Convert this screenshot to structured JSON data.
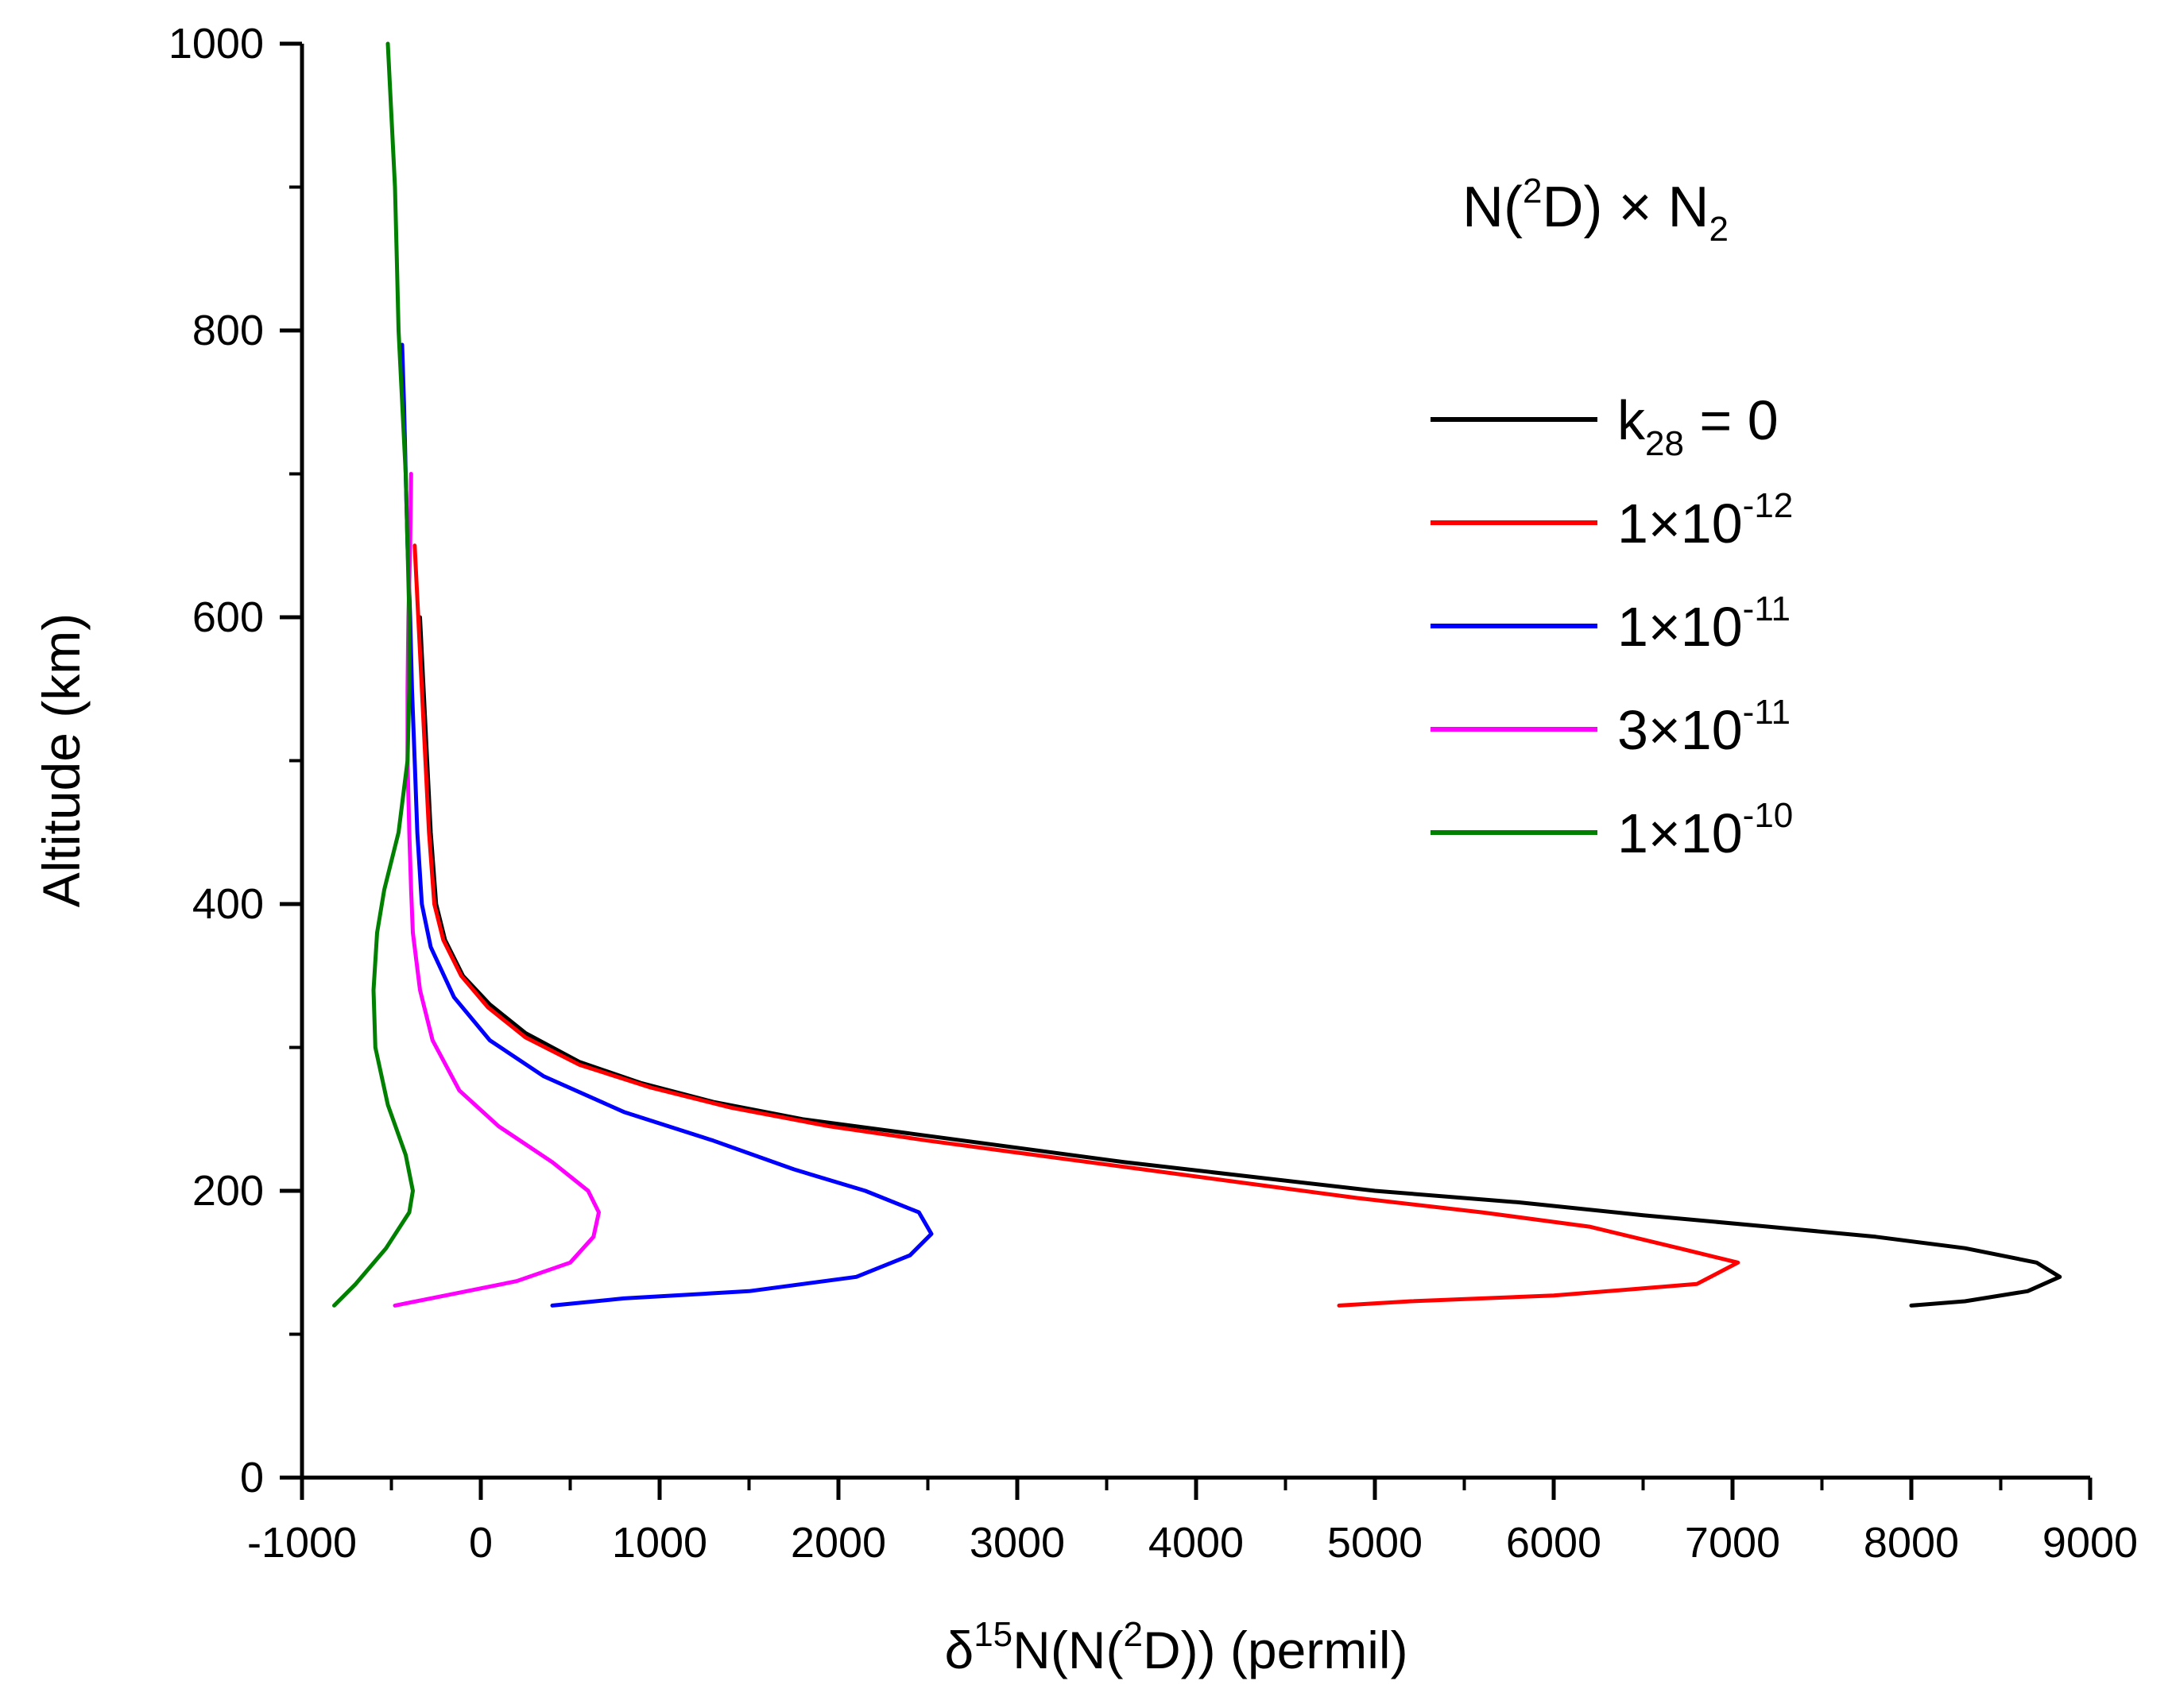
{
  "chart_data": {
    "type": "line",
    "title": "",
    "annotation": {
      "prefix": "N(",
      "sup": "2",
      "middle": "D) × N",
      "sub": "2"
    },
    "xlabel": {
      "prefix": "δ",
      "sup1": "15",
      "middle": "N(N(",
      "sup2": "2",
      "suffix": "D)) (permil)"
    },
    "ylabel": "Altitude (km)",
    "xlim": [
      -1000,
      9000
    ],
    "ylim": [
      0,
      1000
    ],
    "xticks": [
      "-1000",
      "0",
      "1000",
      "2000",
      "3000",
      "4000",
      "5000",
      "6000",
      "7000",
      "8000",
      "9000"
    ],
    "yticks": [
      "0",
      "200",
      "400",
      "600",
      "800",
      "1000"
    ],
    "legend_position": "top-right",
    "series": [
      {
        "name": "k28 = 0",
        "label_main": "k",
        "label_sub": "28",
        "label_tail": " = 0",
        "label_sup": "",
        "color": "#000000",
        "points": [
          [
            8000,
            120
          ],
          [
            8300,
            123
          ],
          [
            8650,
            130
          ],
          [
            8830,
            140
          ],
          [
            8700,
            150
          ],
          [
            8300,
            160
          ],
          [
            7800,
            168
          ],
          [
            7200,
            175
          ],
          [
            6500,
            183
          ],
          [
            5800,
            192
          ],
          [
            5000,
            200
          ],
          [
            4300,
            210
          ],
          [
            3600,
            220
          ],
          [
            3000,
            230
          ],
          [
            2400,
            240
          ],
          [
            1800,
            250
          ],
          [
            1300,
            262
          ],
          [
            900,
            275
          ],
          [
            550,
            290
          ],
          [
            250,
            310
          ],
          [
            50,
            330
          ],
          [
            -100,
            350
          ],
          [
            -200,
            375
          ],
          [
            -250,
            400
          ],
          [
            -280,
            450
          ],
          [
            -300,
            500
          ],
          [
            -320,
            550
          ],
          [
            -340,
            600
          ]
        ]
      },
      {
        "name": "1×10-12",
        "label_main": "1×10",
        "label_sub": "",
        "label_tail": "",
        "label_sup": "-12",
        "color": "#ff0000",
        "points": [
          [
            4800,
            120
          ],
          [
            5200,
            123
          ],
          [
            6000,
            127
          ],
          [
            6800,
            135
          ],
          [
            7030,
            150
          ],
          [
            6700,
            160
          ],
          [
            6200,
            175
          ],
          [
            5600,
            185
          ],
          [
            4900,
            195
          ],
          [
            4300,
            205
          ],
          [
            3700,
            215
          ],
          [
            3100,
            225
          ],
          [
            2500,
            235
          ],
          [
            1950,
            245
          ],
          [
            1400,
            258
          ],
          [
            950,
            272
          ],
          [
            550,
            288
          ],
          [
            250,
            307
          ],
          [
            40,
            328
          ],
          [
            -110,
            350
          ],
          [
            -210,
            375
          ],
          [
            -260,
            400
          ],
          [
            -290,
            450
          ],
          [
            -310,
            500
          ],
          [
            -330,
            550
          ],
          [
            -350,
            600
          ],
          [
            -370,
            650
          ]
        ]
      },
      {
        "name": "1×10-11",
        "label_main": "1×10",
        "label_sub": "",
        "label_tail": "",
        "label_sup": "-11",
        "color": "#0000ff",
        "points": [
          [
            400,
            120
          ],
          [
            800,
            125
          ],
          [
            1500,
            130
          ],
          [
            2100,
            140
          ],
          [
            2400,
            155
          ],
          [
            2520,
            170
          ],
          [
            2450,
            185
          ],
          [
            2150,
            200
          ],
          [
            1750,
            215
          ],
          [
            1300,
            235
          ],
          [
            800,
            255
          ],
          [
            350,
            280
          ],
          [
            50,
            305
          ],
          [
            -150,
            335
          ],
          [
            -280,
            370
          ],
          [
            -330,
            400
          ],
          [
            -355,
            450
          ],
          [
            -370,
            500
          ],
          [
            -385,
            550
          ],
          [
            -395,
            600
          ],
          [
            -410,
            650
          ],
          [
            -420,
            700
          ],
          [
            -430,
            750
          ],
          [
            -440,
            790
          ]
        ]
      },
      {
        "name": "3×10-11",
        "label_main": "3×10",
        "label_sub": "",
        "label_tail": "",
        "label_sup": "-11",
        "color": "#ff00ff",
        "points": [
          [
            -480,
            120
          ],
          [
            -200,
            127
          ],
          [
            200,
            137
          ],
          [
            500,
            150
          ],
          [
            630,
            168
          ],
          [
            660,
            185
          ],
          [
            600,
            200
          ],
          [
            400,
            220
          ],
          [
            100,
            245
          ],
          [
            -120,
            270
          ],
          [
            -270,
            305
          ],
          [
            -340,
            340
          ],
          [
            -380,
            380
          ],
          [
            -390,
            410
          ],
          [
            -400,
            450
          ],
          [
            -410,
            500
          ],
          [
            -410,
            550
          ],
          [
            -405,
            600
          ],
          [
            -395,
            650
          ],
          [
            -390,
            700
          ]
        ]
      },
      {
        "name": "1×10-10",
        "label_main": "1×10",
        "label_sub": "",
        "label_tail": "",
        "label_sup": "-10",
        "color": "#008000",
        "points": [
          [
            -820,
            120
          ],
          [
            -700,
            135
          ],
          [
            -530,
            160
          ],
          [
            -400,
            185
          ],
          [
            -380,
            200
          ],
          [
            -420,
            225
          ],
          [
            -520,
            260
          ],
          [
            -590,
            300
          ],
          [
            -600,
            340
          ],
          [
            -580,
            380
          ],
          [
            -540,
            410
          ],
          [
            -460,
            450
          ],
          [
            -410,
            500
          ],
          [
            -400,
            550
          ],
          [
            -400,
            600
          ],
          [
            -410,
            650
          ],
          [
            -420,
            700
          ],
          [
            -440,
            750
          ],
          [
            -460,
            800
          ],
          [
            -470,
            850
          ],
          [
            -480,
            900
          ],
          [
            -500,
            950
          ],
          [
            -520,
            1000
          ]
        ]
      }
    ]
  }
}
